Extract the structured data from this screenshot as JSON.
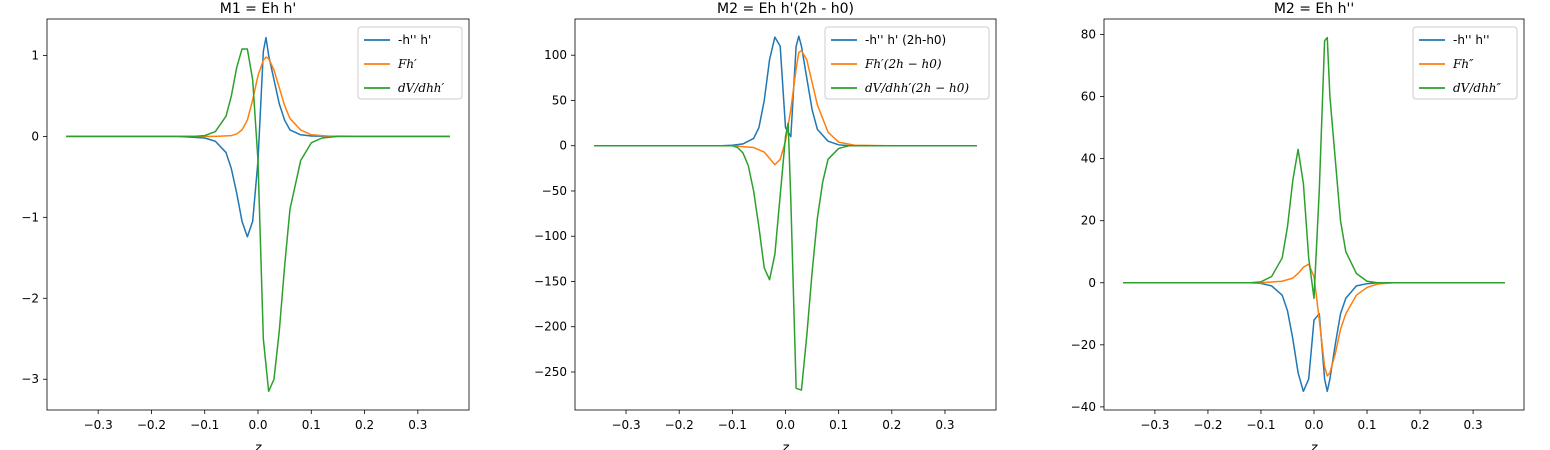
{
  "colors": {
    "series": [
      "#1f77b4",
      "#ff7f0e",
      "#2ca02c"
    ]
  },
  "chart_data": [
    {
      "type": "line",
      "title": "M1 = Eh h'",
      "xlabel": "z",
      "xlim": [
        -0.396,
        0.396
      ],
      "ylim": [
        -3.38,
        1.45
      ],
      "xticks": [
        -0.3,
        -0.2,
        -0.1,
        0.0,
        0.1,
        0.2,
        0.3
      ],
      "xtick_labels": [
        "−0.3",
        "−0.2",
        "−0.1",
        "0.0",
        "0.1",
        "0.2",
        "0.3"
      ],
      "yticks": [
        -3,
        -2,
        -1,
        0,
        1
      ],
      "ytick_labels": [
        "−3",
        "−2",
        "−1",
        "0",
        "1"
      ],
      "legend_position": "top-right",
      "series": [
        {
          "name": "-h'' h'",
          "math": false,
          "color": "#1f77b4",
          "x": [
            -0.36,
            -0.15,
            -0.1,
            -0.08,
            -0.06,
            -0.05,
            -0.04,
            -0.03,
            -0.02,
            -0.01,
            0.0,
            0.01,
            0.015,
            0.02,
            0.03,
            0.04,
            0.05,
            0.06,
            0.08,
            0.1,
            0.15,
            0.36
          ],
          "y": [
            0,
            0,
            -0.02,
            -0.06,
            -0.2,
            -0.4,
            -0.7,
            -1.05,
            -1.24,
            -1.05,
            -0.3,
            1.05,
            1.22,
            1.0,
            0.7,
            0.4,
            0.2,
            0.08,
            0.02,
            0.005,
            0,
            0
          ]
        },
        {
          "name": "Fh′",
          "math": true,
          "color": "#ff7f0e",
          "x": [
            -0.36,
            -0.08,
            -0.05,
            -0.04,
            -0.03,
            -0.02,
            -0.01,
            0.0,
            0.01,
            0.015,
            0.02,
            0.03,
            0.04,
            0.05,
            0.06,
            0.08,
            0.1,
            0.13,
            0.2,
            0.36
          ],
          "y": [
            0,
            0,
            0.01,
            0.03,
            0.08,
            0.2,
            0.45,
            0.75,
            0.94,
            0.98,
            0.96,
            0.82,
            0.6,
            0.38,
            0.22,
            0.08,
            0.02,
            0.005,
            0,
            0
          ]
        },
        {
          "name": "dV/dhh′",
          "math": true,
          "color": "#2ca02c",
          "x": [
            -0.36,
            -0.12,
            -0.1,
            -0.08,
            -0.06,
            -0.05,
            -0.04,
            -0.03,
            -0.02,
            -0.01,
            0.0,
            0.01,
            0.02,
            0.03,
            0.04,
            0.05,
            0.06,
            0.08,
            0.1,
            0.12,
            0.15,
            0.36
          ],
          "y": [
            0,
            0,
            0.01,
            0.06,
            0.25,
            0.5,
            0.85,
            1.08,
            1.08,
            0.7,
            -0.3,
            -2.5,
            -3.15,
            -3.0,
            -2.4,
            -1.6,
            -0.9,
            -0.3,
            -0.08,
            -0.02,
            0,
            0
          ]
        }
      ]
    },
    {
      "type": "line",
      "title": "M2 = Eh h'(2h - h0)",
      "xlabel": "z",
      "xlim": [
        -0.396,
        0.396
      ],
      "ylim": [
        -292,
        140
      ],
      "xticks": [
        -0.3,
        -0.2,
        -0.1,
        0.0,
        0.1,
        0.2,
        0.3
      ],
      "xtick_labels": [
        "−0.3",
        "−0.2",
        "−0.1",
        "0.0",
        "0.1",
        "0.2",
        "0.3"
      ],
      "yticks": [
        -250,
        -200,
        -150,
        -100,
        -50,
        0,
        50,
        100
      ],
      "ytick_labels": [
        "−250",
        "−200",
        "−150",
        "−100",
        "−50",
        "0",
        "50",
        "100"
      ],
      "legend_position": "top-right",
      "series": [
        {
          "name": "-h'' h' (2h-h0)",
          "math": false,
          "color": "#1f77b4",
          "x": [
            -0.36,
            -0.12,
            -0.1,
            -0.08,
            -0.06,
            -0.05,
            -0.04,
            -0.03,
            -0.02,
            -0.01,
            0.0,
            0.01,
            0.02,
            0.025,
            0.03,
            0.04,
            0.05,
            0.06,
            0.08,
            0.1,
            0.12,
            0.36
          ],
          "y": [
            0,
            0,
            0.5,
            2,
            8,
            20,
            50,
            95,
            120,
            110,
            20,
            10,
            110,
            121,
            110,
            75,
            40,
            18,
            5,
            1,
            0,
            0
          ]
        },
        {
          "name": "Fh′(2h − h0)",
          "math": true,
          "color": "#ff7f0e",
          "x": [
            -0.36,
            -0.1,
            -0.06,
            -0.04,
            -0.03,
            -0.02,
            -0.01,
            0.0,
            0.01,
            0.02,
            0.025,
            0.03,
            0.04,
            0.05,
            0.06,
            0.08,
            0.1,
            0.13,
            0.2,
            0.36
          ],
          "y": [
            0,
            0,
            -2,
            -7,
            -14,
            -21,
            -15,
            5,
            40,
            85,
            103,
            105,
            95,
            70,
            45,
            15,
            4,
            0.5,
            0,
            0
          ]
        },
        {
          "name": "dV/dhh′(2h − h0)",
          "math": true,
          "color": "#2ca02c",
          "x": [
            -0.36,
            -0.1,
            -0.09,
            -0.08,
            -0.07,
            -0.06,
            -0.05,
            -0.04,
            -0.03,
            -0.02,
            -0.01,
            0.0,
            0.005,
            0.01,
            0.02,
            0.03,
            0.04,
            0.05,
            0.06,
            0.07,
            0.08,
            0.1,
            0.12,
            0.36
          ],
          "y": [
            0,
            0,
            -2,
            -8,
            -22,
            -50,
            -90,
            -135,
            -148,
            -120,
            -55,
            10,
            25,
            -60,
            -268,
            -270,
            -210,
            -140,
            -80,
            -40,
            -15,
            -3,
            0,
            0
          ]
        }
      ]
    },
    {
      "type": "line",
      "title": "M2 = Eh h''",
      "xlabel": "z",
      "xlim": [
        -0.396,
        0.396
      ],
      "ylim": [
        -41,
        85
      ],
      "xticks": [
        -0.3,
        -0.2,
        -0.1,
        0.0,
        0.1,
        0.2,
        0.3
      ],
      "xtick_labels": [
        "−0.3",
        "−0.2",
        "−0.1",
        "0.0",
        "0.1",
        "0.2",
        "0.3"
      ],
      "yticks": [
        -40,
        -20,
        0,
        20,
        40,
        60,
        80
      ],
      "ytick_labels": [
        "−40",
        "−20",
        "0",
        "20",
        "40",
        "60",
        "80"
      ],
      "legend_position": "top-right",
      "series": [
        {
          "name": "-h'' h''",
          "math": false,
          "color": "#1f77b4",
          "x": [
            -0.36,
            -0.12,
            -0.1,
            -0.08,
            -0.06,
            -0.05,
            -0.04,
            -0.03,
            -0.02,
            -0.01,
            0.0,
            0.01,
            0.02,
            0.025,
            0.03,
            0.04,
            0.05,
            0.06,
            0.08,
            0.1,
            0.12,
            0.36
          ],
          "y": [
            0,
            0,
            -0.2,
            -1,
            -4,
            -9,
            -18,
            -29,
            -35,
            -31,
            -12,
            -10,
            -31,
            -35,
            -31,
            -20,
            -10,
            -5,
            -1,
            -0.3,
            0,
            0
          ]
        },
        {
          "name": "Fh″",
          "math": true,
          "color": "#ff7f0e",
          "x": [
            -0.36,
            -0.1,
            -0.06,
            -0.04,
            -0.03,
            -0.02,
            -0.01,
            0.0,
            0.01,
            0.02,
            0.025,
            0.03,
            0.04,
            0.05,
            0.06,
            0.08,
            0.1,
            0.12,
            0.15,
            0.36
          ],
          "y": [
            0,
            0,
            0.5,
            1.5,
            3,
            5,
            6,
            2,
            -12,
            -27,
            -30,
            -29,
            -23,
            -15,
            -10,
            -4,
            -1.5,
            -0.4,
            0,
            0
          ]
        },
        {
          "name": "dV/dhh″",
          "math": true,
          "color": "#2ca02c",
          "x": [
            -0.36,
            -0.12,
            -0.1,
            -0.08,
            -0.06,
            -0.05,
            -0.04,
            -0.03,
            -0.02,
            -0.01,
            0.0,
            0.01,
            0.02,
            0.025,
            0.03,
            0.04,
            0.05,
            0.06,
            0.08,
            0.1,
            0.12,
            0.36
          ],
          "y": [
            0,
            0,
            0.3,
            2,
            8,
            18,
            33,
            43,
            32,
            8,
            -5,
            30,
            78,
            79,
            60,
            40,
            20,
            10,
            3,
            0.5,
            0,
            0
          ]
        }
      ]
    }
  ]
}
